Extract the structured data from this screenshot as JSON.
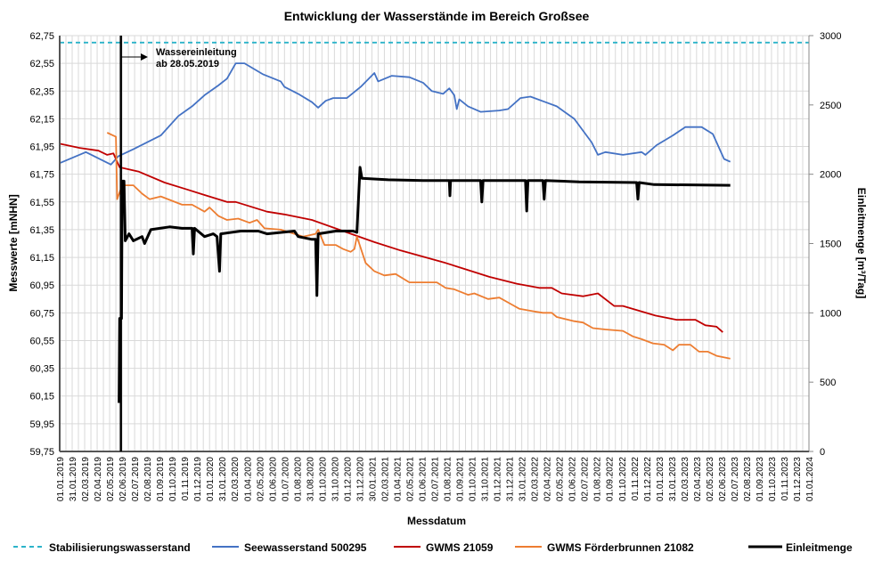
{
  "chart_data": {
    "type": "line",
    "title": "Entwicklung der Wasserstände im Bereich Großsee",
    "xlabel": "Messdatum",
    "ylabel": "Messwerte [mNHN]",
    "y2label": "Einleitmenge [m³/Tag]",
    "ylim": [
      59.75,
      62.75
    ],
    "y_ticks": [
      "59,75",
      "59,95",
      "60,15",
      "60,35",
      "60,55",
      "60,75",
      "60,95",
      "61,15",
      "61,35",
      "61,55",
      "61,75",
      "61,95",
      "62,15",
      "62,35",
      "62,55",
      "62,75"
    ],
    "y2lim": [
      0,
      3000
    ],
    "y2_ticks": [
      "0",
      "500",
      "1000",
      "1500",
      "2000",
      "2500",
      "3000"
    ],
    "x_unit": "months since 01.01.2019",
    "xlim": [
      0,
      60
    ],
    "x_ticks": [
      "01.01.2019",
      "31.01.2019",
      "02.03.2019",
      "02.04.2019",
      "02.05.2019",
      "02.06.2019",
      "02.07.2019",
      "02.08.2019",
      "01.09.2019",
      "01.10.2019",
      "01.11.2019",
      "01.12.2019",
      "01.01.2020",
      "31.01.2020",
      "02.03.2020",
      "01.04.2020",
      "02.05.2020",
      "01.06.2020",
      "01.07.2020",
      "01.08.2020",
      "31.08.2020",
      "01.10.2020",
      "31.10.2020",
      "01.12.2020",
      "31.12.2020",
      "30.01.2021",
      "02.03.2021",
      "01.04.2021",
      "02.05.2021",
      "01.06.2021",
      "02.07.2021",
      "01.08.2021",
      "01.09.2021",
      "01.10.2021",
      "31.10.2021",
      "01.12.2021",
      "31.12.2021",
      "31.01.2022",
      "02.03.2022",
      "02.04.2022",
      "02.05.2022",
      "01.06.2022",
      "02.07.2022",
      "01.08.2022",
      "01.09.2022",
      "01.10.2022",
      "01.11.2022",
      "01.12.2022",
      "01.01.2023",
      "31.01.2023",
      "02.03.2023",
      "02.04.2023",
      "02.05.2023",
      "02.06.2023",
      "02.07.2023",
      "02.08.2023",
      "01.09.2023",
      "01.10.2023",
      "01.11.2023",
      "01.12.2023",
      "01.01.2024"
    ],
    "grid": true,
    "legend_placement": "bottom",
    "annotation": {
      "line1": "Wassereinleitung",
      "line2": "ab 28.05.2019",
      "x": 4.9
    },
    "series": [
      {
        "name": "Stabilisierungswasserstand",
        "axis": "left",
        "color": "#2bb3c9",
        "dashed": true,
        "points": [
          [
            0,
            62.7
          ],
          [
            60,
            62.7
          ]
        ]
      },
      {
        "name": "Seewasserstand 500295",
        "axis": "left",
        "color": "#4472c4",
        "points": [
          [
            0,
            61.83
          ],
          [
            2.1,
            61.91
          ],
          [
            4.1,
            61.82
          ],
          [
            4.7,
            61.88
          ],
          [
            5.9,
            61.93
          ],
          [
            8.1,
            62.03
          ],
          [
            9.5,
            62.17
          ],
          [
            10.6,
            62.24
          ],
          [
            11.6,
            62.32
          ],
          [
            12.7,
            62.39
          ],
          [
            13.4,
            62.44
          ],
          [
            14.1,
            62.55
          ],
          [
            14.8,
            62.55
          ],
          [
            16.3,
            62.47
          ],
          [
            17.7,
            62.42
          ],
          [
            18,
            62.38
          ],
          [
            19.1,
            62.33
          ],
          [
            20.2,
            62.27
          ],
          [
            20.7,
            62.23
          ],
          [
            21.3,
            62.28
          ],
          [
            21.9,
            62.3
          ],
          [
            23,
            62.3
          ],
          [
            24.1,
            62.38
          ],
          [
            25.2,
            62.48
          ],
          [
            25.5,
            62.42
          ],
          [
            26.6,
            62.46
          ],
          [
            28,
            62.45
          ],
          [
            29.1,
            62.41
          ],
          [
            29.8,
            62.35
          ],
          [
            30.7,
            62.33
          ],
          [
            31.2,
            62.37
          ],
          [
            31.6,
            62.32
          ],
          [
            31.8,
            62.22
          ],
          [
            32,
            62.29
          ],
          [
            32.7,
            62.24
          ],
          [
            33.7,
            62.2
          ],
          [
            35.2,
            62.21
          ],
          [
            35.9,
            62.22
          ],
          [
            36.9,
            62.3
          ],
          [
            37.7,
            62.31
          ],
          [
            38.9,
            62.27
          ],
          [
            39.8,
            62.24
          ],
          [
            41.2,
            62.15
          ],
          [
            42.6,
            61.98
          ],
          [
            43.1,
            61.89
          ],
          [
            43.7,
            61.91
          ],
          [
            45.1,
            61.89
          ],
          [
            46.6,
            61.91
          ],
          [
            46.9,
            61.89
          ],
          [
            47.8,
            61.96
          ],
          [
            49.1,
            62.03
          ],
          [
            50.1,
            62.09
          ],
          [
            51.4,
            62.09
          ],
          [
            52.3,
            62.04
          ],
          [
            53.2,
            61.86
          ],
          [
            53.7,
            61.84
          ]
        ]
      },
      {
        "name": "GWMS 21059",
        "axis": "left",
        "color": "#c00000",
        "points": [
          [
            0,
            61.97
          ],
          [
            1.6,
            61.94
          ],
          [
            3.1,
            61.92
          ],
          [
            3.8,
            61.89
          ],
          [
            4.3,
            61.9
          ],
          [
            4.8,
            61.8
          ],
          [
            6.3,
            61.77
          ],
          [
            8.4,
            61.69
          ],
          [
            10.2,
            61.64
          ],
          [
            11.6,
            61.6
          ],
          [
            13.4,
            61.55
          ],
          [
            14.1,
            61.55
          ],
          [
            16.6,
            61.48
          ],
          [
            18,
            61.46
          ],
          [
            20.2,
            61.42
          ],
          [
            22.7,
            61.34
          ],
          [
            25.2,
            61.26
          ],
          [
            27.3,
            61.2
          ],
          [
            30.9,
            61.11
          ],
          [
            32.3,
            61.07
          ],
          [
            34.4,
            61.01
          ],
          [
            36.6,
            60.96
          ],
          [
            38.4,
            60.93
          ],
          [
            39.4,
            60.93
          ],
          [
            40.2,
            60.89
          ],
          [
            41.9,
            60.87
          ],
          [
            43.1,
            60.89
          ],
          [
            44.4,
            60.8
          ],
          [
            45.1,
            60.8
          ],
          [
            47.7,
            60.73
          ],
          [
            49.4,
            60.7
          ],
          [
            50.9,
            60.7
          ],
          [
            51.7,
            60.66
          ],
          [
            52.6,
            60.65
          ],
          [
            53.1,
            60.61
          ]
        ]
      },
      {
        "name": "GWMS  Förderbrunnen 21082",
        "axis": "left",
        "color": "#ed7d31",
        "points": [
          [
            3.8,
            62.05
          ],
          [
            4.5,
            62.02
          ],
          [
            4.6,
            61.57
          ],
          [
            5,
            61.67
          ],
          [
            5.9,
            61.67
          ],
          [
            6.6,
            61.61
          ],
          [
            7.2,
            61.57
          ],
          [
            8.1,
            61.59
          ],
          [
            9.8,
            61.53
          ],
          [
            10.6,
            61.53
          ],
          [
            11.6,
            61.48
          ],
          [
            12,
            61.51
          ],
          [
            12.7,
            61.45
          ],
          [
            13.4,
            61.42
          ],
          [
            14.3,
            61.43
          ],
          [
            15.2,
            61.4
          ],
          [
            15.8,
            61.42
          ],
          [
            16.4,
            61.36
          ],
          [
            17.7,
            61.35
          ],
          [
            18.8,
            61.32
          ],
          [
            19.5,
            61.3
          ],
          [
            20.5,
            61.32
          ],
          [
            20.7,
            61.35
          ],
          [
            21.2,
            61.24
          ],
          [
            22.1,
            61.24
          ],
          [
            22.7,
            61.21
          ],
          [
            23.3,
            61.19
          ],
          [
            23.6,
            61.21
          ],
          [
            23.8,
            61.3
          ],
          [
            24.5,
            61.11
          ],
          [
            25.2,
            61.05
          ],
          [
            26,
            61.02
          ],
          [
            26.9,
            61.03
          ],
          [
            28,
            60.97
          ],
          [
            29.1,
            60.97
          ],
          [
            30.2,
            60.97
          ],
          [
            30.9,
            60.93
          ],
          [
            31.6,
            60.92
          ],
          [
            32.7,
            60.88
          ],
          [
            33.2,
            60.89
          ],
          [
            34.3,
            60.85
          ],
          [
            35.2,
            60.86
          ],
          [
            36.2,
            60.81
          ],
          [
            36.8,
            60.78
          ],
          [
            38,
            60.76
          ],
          [
            38.7,
            60.75
          ],
          [
            39.4,
            60.75
          ],
          [
            39.8,
            60.72
          ],
          [
            41.2,
            60.69
          ],
          [
            41.9,
            60.68
          ],
          [
            42.7,
            60.64
          ],
          [
            43.7,
            60.63
          ],
          [
            45.1,
            60.62
          ],
          [
            45.9,
            60.58
          ],
          [
            46.6,
            60.56
          ],
          [
            47.5,
            60.53
          ],
          [
            48.4,
            60.52
          ],
          [
            49.1,
            60.48
          ],
          [
            49.6,
            60.52
          ],
          [
            50.5,
            60.52
          ],
          [
            51.2,
            60.47
          ],
          [
            51.9,
            60.47
          ],
          [
            52.6,
            60.44
          ],
          [
            53.7,
            60.42
          ]
        ]
      },
      {
        "name": "Einleitmenge",
        "axis": "right",
        "color": "#000000",
        "thick": true,
        "points": [
          [
            4.75,
            350
          ],
          [
            4.8,
            960
          ],
          [
            4.95,
            960
          ],
          [
            5.0,
            1950
          ],
          [
            5.15,
            1950
          ],
          [
            5.25,
            1520
          ],
          [
            5.55,
            1570
          ],
          [
            5.9,
            1520
          ],
          [
            6.6,
            1550
          ],
          [
            6.8,
            1500
          ],
          [
            7.3,
            1600
          ],
          [
            8.8,
            1620
          ],
          [
            9.8,
            1610
          ],
          [
            10.6,
            1610
          ],
          [
            10.7,
            1425
          ],
          [
            10.8,
            1610
          ],
          [
            11.6,
            1550
          ],
          [
            12.3,
            1570
          ],
          [
            12.6,
            1550
          ],
          [
            12.8,
            1300
          ],
          [
            12.9,
            1570
          ],
          [
            14.5,
            1590
          ],
          [
            15.9,
            1590
          ],
          [
            16.6,
            1570
          ],
          [
            18.8,
            1590
          ],
          [
            19.1,
            1550
          ],
          [
            20.2,
            1530
          ],
          [
            20.5,
            1530
          ],
          [
            20.6,
            1125
          ],
          [
            20.7,
            1570
          ],
          [
            22.1,
            1590
          ],
          [
            23.5,
            1590
          ],
          [
            23.8,
            1580
          ],
          [
            24.05,
            2050
          ],
          [
            24.2,
            1970
          ],
          [
            26.3,
            1960
          ],
          [
            29.1,
            1955
          ],
          [
            31.2,
            1955
          ],
          [
            31.25,
            1845
          ],
          [
            31.3,
            1955
          ],
          [
            33.7,
            1955
          ],
          [
            33.8,
            1800
          ],
          [
            33.9,
            1955
          ],
          [
            37.3,
            1955
          ],
          [
            37.4,
            1735
          ],
          [
            37.5,
            1955
          ],
          [
            38.7,
            1955
          ],
          [
            38.8,
            1820
          ],
          [
            38.9,
            1955
          ],
          [
            41.6,
            1945
          ],
          [
            46.2,
            1940
          ],
          [
            46.3,
            1820
          ],
          [
            46.4,
            1940
          ],
          [
            47.6,
            1925
          ],
          [
            53.7,
            1920
          ]
        ]
      }
    ]
  }
}
